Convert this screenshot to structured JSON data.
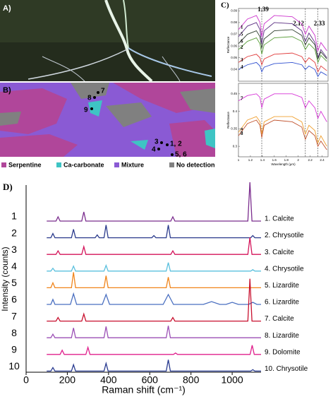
{
  "panels": {
    "a": {
      "label": "A)"
    },
    "b": {
      "label": "B)",
      "points": [
        "7",
        "8",
        "9",
        "3",
        "1, 2",
        "4",
        "5, 6"
      ],
      "legend": [
        {
          "name": "Serpentine",
          "color": "#b0469a"
        },
        {
          "name": "Ca-carbonate",
          "color": "#3ec4c4"
        },
        {
          "name": "Mixture",
          "color": "#8a5ad4"
        },
        {
          "name": "No detection",
          "color": "#808080"
        }
      ]
    }
  },
  "chart_data": [
    {
      "type": "line",
      "panel_label": "C)",
      "ylabel": "Reflectance",
      "xlim": [
        1,
        2.5
      ],
      "ylim": [
        0.03,
        0.092
      ],
      "yticks": [
        0.04,
        0.05,
        0.06,
        0.07,
        0.08,
        0.09
      ],
      "vlines": [
        1.39,
        2.12,
        2.33
      ],
      "x": [
        1.0,
        1.15,
        1.3,
        1.36,
        1.39,
        1.43,
        1.6,
        1.9,
        2.06,
        2.12,
        2.18,
        2.28,
        2.33,
        2.38,
        2.48
      ],
      "series": [
        {
          "name": "1",
          "color": "#cc33cc",
          "values": [
            0.074,
            0.083,
            0.086,
            0.08,
            0.068,
            0.079,
            0.086,
            0.085,
            0.079,
            0.07,
            0.077,
            0.069,
            0.056,
            0.063,
            0.056
          ]
        },
        {
          "name": "5",
          "color": "#5a2d82",
          "values": [
            0.068,
            0.077,
            0.08,
            0.074,
            0.062,
            0.073,
            0.08,
            0.079,
            0.073,
            0.064,
            0.071,
            0.063,
            0.05,
            0.057,
            0.05
          ]
        },
        {
          "name": "6",
          "color": "#2f3f2f",
          "values": [
            0.062,
            0.07,
            0.073,
            0.068,
            0.058,
            0.066,
            0.073,
            0.074,
            0.069,
            0.061,
            0.067,
            0.061,
            0.049,
            0.055,
            0.049
          ]
        },
        {
          "name": "2",
          "color": "#5a9e3a",
          "values": [
            0.057,
            0.064,
            0.067,
            0.062,
            0.053,
            0.061,
            0.067,
            0.068,
            0.064,
            0.057,
            0.062,
            0.057,
            0.046,
            0.052,
            0.047
          ]
        },
        {
          "name": "3",
          "color": "#e03a3a",
          "values": [
            0.046,
            0.051,
            0.053,
            0.05,
            0.044,
            0.049,
            0.053,
            0.054,
            0.051,
            0.046,
            0.05,
            0.046,
            0.038,
            0.043,
            0.039
          ]
        },
        {
          "name": "4",
          "color": "#2f4fd0",
          "values": [
            0.04,
            0.044,
            0.046,
            0.043,
            0.038,
            0.042,
            0.045,
            0.046,
            0.044,
            0.04,
            0.043,
            0.04,
            0.034,
            0.038,
            0.035
          ]
        }
      ]
    },
    {
      "type": "line",
      "ylabel": "Reflectance",
      "xlabel": "Wavelength (μm)",
      "xlim": [
        1,
        2.5
      ],
      "ylim": [
        0.27,
        0.48
      ],
      "xticks": [
        1,
        1.2,
        1.4,
        1.6,
        1.8,
        2,
        2.2,
        2.4
      ],
      "yticks": [
        0.3,
        0.35,
        0.4,
        0.45
      ],
      "x": [
        1.0,
        1.15,
        1.3,
        1.36,
        1.39,
        1.43,
        1.6,
        1.9,
        2.06,
        2.12,
        2.18,
        2.28,
        2.33,
        2.38,
        2.48
      ],
      "series": [
        {
          "name": "7",
          "color": "#d633d6",
          "values": [
            0.43,
            0.445,
            0.45,
            0.44,
            0.41,
            0.435,
            0.45,
            0.45,
            0.44,
            0.41,
            0.43,
            0.41,
            0.38,
            0.4,
            0.37
          ]
        },
        {
          "name": "9",
          "color": "#f0a030",
          "values": [
            0.34,
            0.375,
            0.385,
            0.37,
            0.335,
            0.37,
            0.385,
            0.385,
            0.37,
            0.335,
            0.36,
            0.345,
            0.31,
            0.33,
            0.3
          ]
        },
        {
          "name": "8",
          "color": "#c0502a",
          "values": [
            0.33,
            0.365,
            0.375,
            0.36,
            0.325,
            0.36,
            0.375,
            0.37,
            0.355,
            0.32,
            0.345,
            0.33,
            0.3,
            0.315,
            0.29
          ]
        }
      ]
    },
    {
      "type": "raman",
      "panel_label": "D)",
      "xlabel": "Raman shift (cm⁻¹)",
      "ylabel": "Intensity (counts)",
      "xlim": [
        0,
        1140
      ],
      "xticks": [
        0,
        200,
        400,
        600,
        800,
        1000
      ],
      "series": [
        {
          "label": "1",
          "name": "1. Calcite",
          "color": "#7b2d8e",
          "x": [
            100,
            145,
            155,
            165,
            270,
            280,
            290,
            702,
            712,
            722,
            1076,
            1086,
            1096,
            1140
          ],
          "values": [
            0,
            0,
            0.6,
            0,
            0,
            1.3,
            0,
            0,
            0.6,
            0,
            0,
            5.5,
            0,
            0
          ]
        },
        {
          "label": "2",
          "name": "2. Chrysotile",
          "color": "#2a3a8c",
          "x": [
            100,
            120,
            130,
            140,
            220,
            230,
            240,
            335,
            345,
            355,
            378,
            388,
            398,
            610,
            620,
            630,
            680,
            690,
            700,
            1090,
            1100,
            1110,
            1140
          ],
          "values": [
            0,
            0,
            0.6,
            0,
            0,
            1.2,
            0,
            0,
            0.4,
            0,
            0,
            1.8,
            0,
            0,
            0.3,
            0,
            0,
            1.8,
            0,
            0,
            0.3,
            0,
            0
          ]
        },
        {
          "label": "3",
          "name": "3. Calcite",
          "color": "#d4145a",
          "x": [
            100,
            145,
            155,
            165,
            270,
            280,
            290,
            702,
            712,
            722,
            1076,
            1086,
            1096,
            1140
          ],
          "values": [
            0,
            0,
            0.5,
            0,
            0,
            1.1,
            0,
            0,
            0.5,
            0,
            0,
            2.4,
            0,
            0
          ]
        },
        {
          "label": "4",
          "name": "4. Chrysotile",
          "color": "#5bc0de",
          "x": [
            100,
            120,
            130,
            140,
            220,
            230,
            240,
            378,
            388,
            398,
            680,
            690,
            700,
            1090,
            1100,
            1110,
            1140
          ],
          "values": [
            0,
            0,
            0.4,
            0,
            0,
            0.7,
            0,
            0,
            0.8,
            0,
            0,
            1.2,
            0,
            0,
            0.2,
            0,
            0
          ]
        },
        {
          "label": "5",
          "name": "5. Lizardite",
          "color": "#f0841a",
          "x": [
            100,
            120,
            130,
            140,
            220,
            230,
            240,
            378,
            388,
            398,
            680,
            690,
            700,
            1140
          ],
          "values": [
            0,
            0,
            0.7,
            0,
            0,
            2.2,
            0,
            0,
            1.7,
            0,
            0,
            1.5,
            0,
            0
          ]
        },
        {
          "label": "6",
          "name": "6. Lizardite",
          "color": "#4a6fc0",
          "x": [
            100,
            120,
            130,
            140,
            215,
            230,
            245,
            370,
            388,
            405,
            665,
            690,
            715,
            860,
            900,
            940,
            970,
            1000,
            1030,
            1080,
            1100,
            1120,
            1140
          ],
          "values": [
            0,
            0,
            0.7,
            0,
            0,
            1.5,
            0,
            0,
            1.4,
            0,
            0,
            1.4,
            0,
            0,
            0.4,
            0,
            0,
            0.3,
            0,
            0,
            0.3,
            0,
            0
          ]
        },
        {
          "label": "7",
          "name": "7. Calcite",
          "color": "#c8102e",
          "x": [
            100,
            145,
            155,
            165,
            270,
            280,
            290,
            702,
            712,
            722,
            1076,
            1086,
            1096,
            1140
          ],
          "values": [
            0,
            0,
            0.5,
            0,
            0,
            1.0,
            0,
            0,
            0.5,
            0,
            0,
            6,
            0,
            0
          ]
        },
        {
          "label": "8",
          "name": "8. Lizardite",
          "color": "#9b4fb5",
          "x": [
            100,
            120,
            130,
            140,
            220,
            230,
            240,
            378,
            388,
            398,
            680,
            690,
            700,
            1140
          ],
          "values": [
            0,
            0,
            0.5,
            0,
            0,
            1.4,
            0,
            0,
            1.6,
            0,
            0,
            1.7,
            0,
            0
          ]
        },
        {
          "label": "9",
          "name": "9. Dolomite",
          "color": "#e0208c",
          "x": [
            100,
            165,
            175,
            185,
            290,
            300,
            310,
            715,
            725,
            735,
            1087,
            1097,
            1107,
            1140
          ],
          "values": [
            0,
            0,
            0.6,
            0,
            0,
            1.0,
            0,
            0,
            0.2,
            0,
            0,
            1.3,
            0,
            0
          ]
        },
        {
          "label": "10",
          "name": "10. Chrysotile",
          "color": "#283a90",
          "x": [
            100,
            120,
            130,
            140,
            220,
            230,
            240,
            378,
            388,
            398,
            680,
            690,
            700,
            1090,
            1100,
            1110,
            1140
          ],
          "values": [
            0,
            0,
            0.5,
            0,
            0,
            0.9,
            0,
            0,
            1.1,
            0,
            0,
            1.6,
            0,
            0,
            0.2,
            0,
            0
          ]
        }
      ]
    }
  ]
}
